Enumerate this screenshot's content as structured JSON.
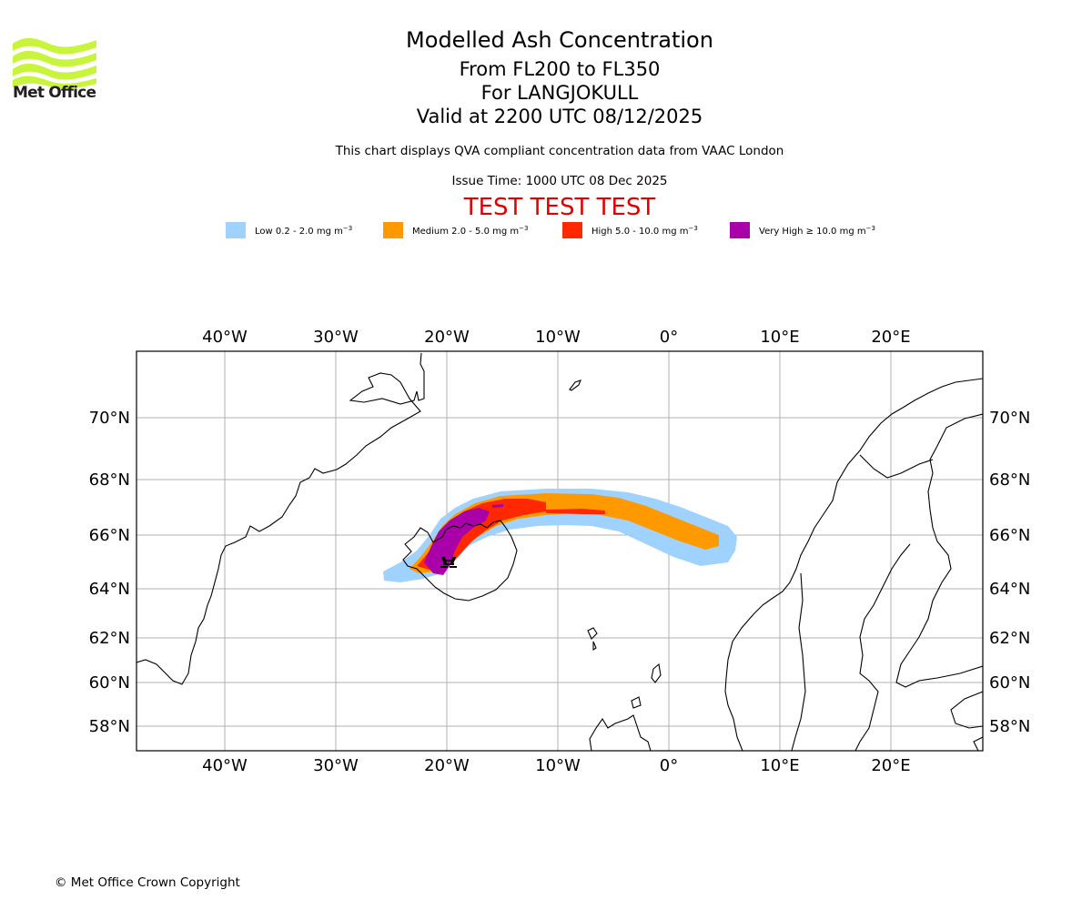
{
  "logo": {
    "brand": "Met Office",
    "icon": "met-office-waves-logo",
    "color": "#c8f53c"
  },
  "header": {
    "title": "Modelled Ash Concentration",
    "level_range": "From FL200 to FL350",
    "volcano": "For LANGJOKULL",
    "valid_time": "Valid at 2200 UTC 08/12/2025",
    "description": "This chart displays QVA compliant concentration data from VAAC London",
    "issue_time": "Issue Time: 1000 UTC 08 Dec 2025",
    "test_banner": "TEST TEST TEST",
    "test_color": "#e00000"
  },
  "legend": [
    {
      "label": "Low 0.2 - 2.0 mg m",
      "unit_exp": "−3",
      "color": "#a0d2ff"
    },
    {
      "label": "Medium 2.0 - 5.0 mg m",
      "unit_exp": "−3",
      "color": "#ff9900"
    },
    {
      "label": "High 5.0 - 10.0 mg m",
      "unit_exp": "−3",
      "color": "#ff2800"
    },
    {
      "label": "Very High  ≥  10.0 mg m",
      "unit_exp": "−3",
      "color": "#aa00aa"
    }
  ],
  "map": {
    "lon_range": [
      -48,
      28
    ],
    "lat_range": [
      57,
      72
    ],
    "lon_ticks": [
      {
        "value": -40,
        "label": "40°W"
      },
      {
        "value": -30,
        "label": "30°W"
      },
      {
        "value": -20,
        "label": "20°W"
      },
      {
        "value": -10,
        "label": "10°W"
      },
      {
        "value": 0,
        "label": "0°"
      },
      {
        "value": 10,
        "label": "10°E"
      },
      {
        "value": 20,
        "label": "20°E"
      }
    ],
    "lat_ticks": [
      {
        "value": 70,
        "label": "70°N"
      },
      {
        "value": 68,
        "label": "68°N"
      },
      {
        "value": 66,
        "label": "66°N"
      },
      {
        "value": 64,
        "label": "64°N"
      },
      {
        "value": 62,
        "label": "62°N"
      },
      {
        "value": 60,
        "label": "60°N"
      },
      {
        "value": 58,
        "label": "58°N"
      }
    ],
    "gridlines": true,
    "grid_color": "#b0b0b0",
    "volcano_marker": {
      "name": "LANGJOKULL",
      "icon": "volcano-icon",
      "lon": -20.0,
      "lat": 64.7
    },
    "ash_levels": [
      "Low",
      "Medium",
      "High",
      "Very High"
    ]
  },
  "footer": {
    "copyright": "© Met Office Crown Copyright"
  }
}
